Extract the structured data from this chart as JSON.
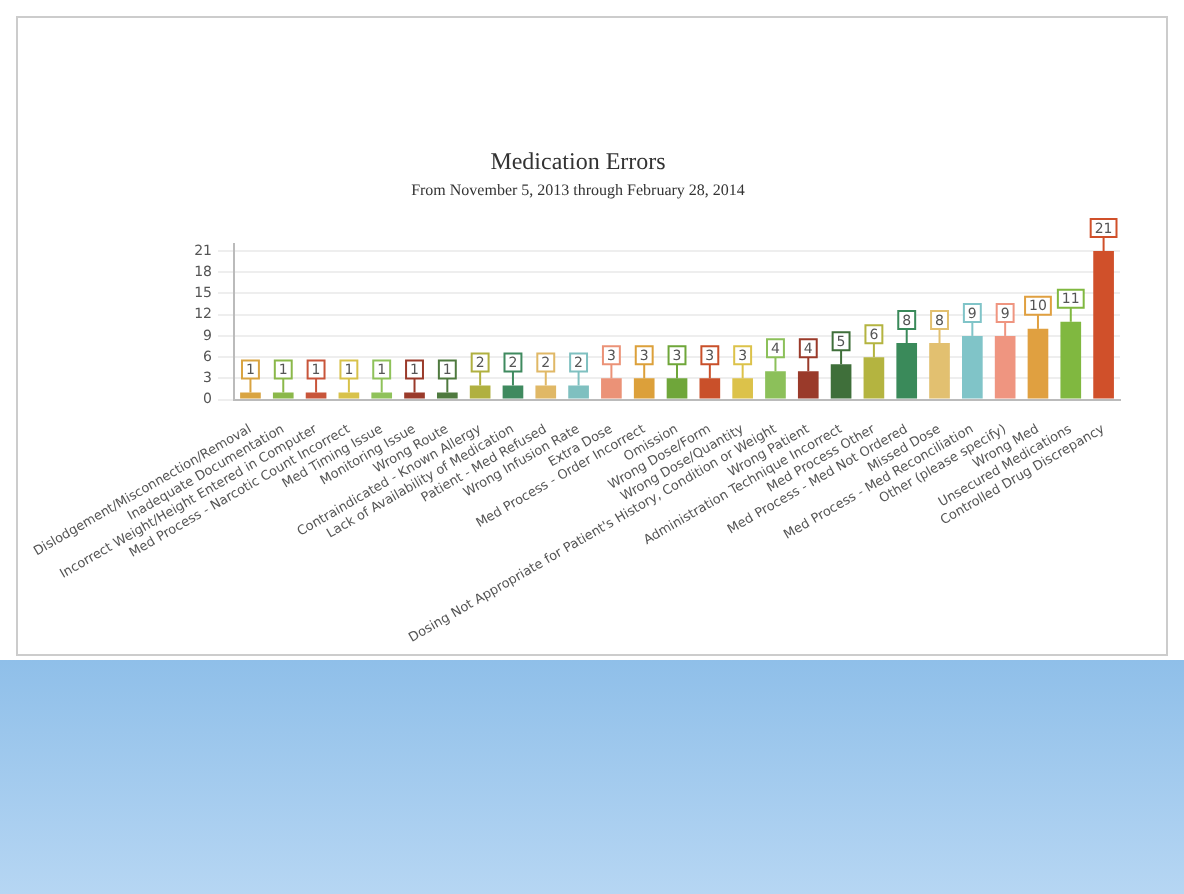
{
  "chart_data": {
    "type": "bar",
    "title": "Medication Errors",
    "subtitle": "From November 5, 2013 through February 28, 2014",
    "categories": [
      "Dislodgement/Misconnection/Removal",
      "Inadequate Documentation",
      "Incorrect Weight/Height Entered in Computer",
      "Med Process - Narcotic Count Incorrect",
      "Med Timing Issue",
      "Monitoring Issue",
      "Wrong Route",
      "Contraindicated - Known Allergy",
      "Lack of Availability of Medication",
      "Patient - Med Refused",
      "Wrong Infusion Rate",
      "Extra Dose",
      "Med Process - Order Incorrect",
      "Omission",
      "Wrong Dose/Form",
      "Wrong Dose/Quantity",
      "Dosing Not Appropriate for Patient's History, Condition or Weight",
      "Wrong Patient",
      "Administration Technique Incorrect",
      "Med Process Other",
      "Med Process - Med Not Ordered",
      "Missed Dose",
      "Med Process - Med Reconciliation",
      "Other (please specify)",
      "Wrong Med",
      "Unsecured Medications",
      "Controlled Drug Discrepancy"
    ],
    "values": [
      1,
      1,
      1,
      1,
      1,
      1,
      1,
      2,
      2,
      2,
      2,
      3,
      3,
      3,
      3,
      3,
      4,
      4,
      5,
      6,
      8,
      8,
      9,
      9,
      10,
      11,
      21
    ],
    "colors": [
      "#d9a441",
      "#8bb84a",
      "#c8553a",
      "#d8c24a",
      "#8fc25a",
      "#9a3a2a",
      "#4f7a3f",
      "#b0b040",
      "#3f8a5f",
      "#e0b866",
      "#7fc0c0",
      "#eb9277",
      "#dca03a",
      "#6fa63a",
      "#c9502a",
      "#dcc24a",
      "#8cc05a",
      "#9a3a2a",
      "#3f6f3a",
      "#b4b440",
      "#3a8a5a",
      "#e2c070",
      "#80c4c8",
      "#ef9580",
      "#e0a040",
      "#80b840",
      "#d0502a"
    ],
    "ylim": [
      0,
      22
    ],
    "yticks": [
      0,
      3,
      6,
      9,
      12,
      15,
      18,
      21
    ],
    "grid": "y",
    "data_labels": true
  }
}
